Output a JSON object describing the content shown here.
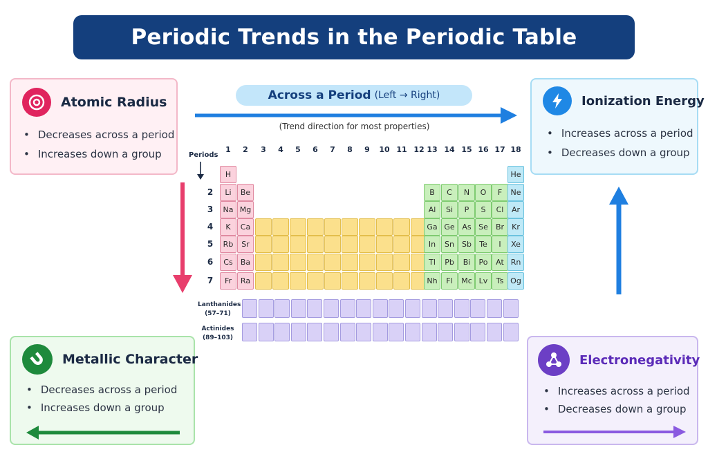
{
  "title": "Periodic Trends in the Periodic Table",
  "across": {
    "label": "Across a Period",
    "sub": "(Left → Right)",
    "note": "(Trend direction for most properties)"
  },
  "periods_label": "Periods",
  "groups": [
    "1",
    "2",
    "3",
    "4",
    "5",
    "6",
    "7",
    "8",
    "9",
    "10",
    "11",
    "12",
    "13",
    "14",
    "15",
    "16",
    "17",
    "18"
  ],
  "periods": [
    "2",
    "3",
    "4",
    "5",
    "6",
    "7"
  ],
  "elements": [
    [
      "H",
      "",
      "",
      "",
      "",
      "",
      "",
      "",
      "",
      "",
      "",
      "",
      "",
      "",
      "",
      "",
      "",
      "He"
    ],
    [
      "Li",
      "Be",
      "",
      "",
      "",
      "",
      "",
      "",
      "",
      "",
      "",
      "",
      "B",
      "C",
      "N",
      "O",
      "F",
      "Ne"
    ],
    [
      "Na",
      "Mg",
      "",
      "",
      "",
      "",
      "",
      "",
      "",
      "",
      "",
      "",
      "Al",
      "Si",
      "P",
      "S",
      "Cl",
      "Ar"
    ],
    [
      "K",
      "Ca",
      "",
      "",
      "",
      "",
      "",
      "",
      "",
      "",
      "",
      "",
      "Ga",
      "Ge",
      "As",
      "Se",
      "Br",
      "Kr"
    ],
    [
      "Rb",
      "Sr",
      "",
      "",
      "",
      "",
      "",
      "",
      "",
      "",
      "",
      "",
      "In",
      "Sn",
      "Sb",
      "Te",
      "I",
      "Xe"
    ],
    [
      "Cs",
      "Ba",
      "",
      "",
      "",
      "",
      "",
      "",
      "",
      "",
      "",
      "",
      "Tl",
      "Pb",
      "Bi",
      "Po",
      "At",
      "Rn"
    ],
    [
      "Fr",
      "Ra",
      "",
      "",
      "",
      "",
      "",
      "",
      "",
      "",
      "",
      "",
      "Nh",
      "Fl",
      "Mc",
      "Lv",
      "Ts",
      "Og"
    ]
  ],
  "f_block": {
    "lanthanides": {
      "name": "Lanthanides",
      "range": "(57–71)"
    },
    "actinides": {
      "name": "Actinides",
      "range": "(89–103)"
    }
  },
  "boxes": {
    "atomic_radius": {
      "title": "Atomic Radius",
      "icon": "target-icon",
      "color": "#e0245e",
      "items": [
        "Decreases across a period",
        "Increases down a group"
      ]
    },
    "ionization_energy": {
      "title": "Ionization Energy",
      "icon": "lightning-icon",
      "color": "#1f88e5",
      "items": [
        "Increases across a period",
        "Decreases down a group"
      ]
    },
    "metallic_character": {
      "title": "Metallic Character",
      "icon": "magnet-icon",
      "color": "#1e8a3c",
      "items": [
        "Decreases across a period",
        "Increases down a group"
      ]
    },
    "electronegativity": {
      "title": "Electronegativity",
      "icon": "molecule-icon",
      "color": "#6c3fc5",
      "items": [
        "Increases across a period",
        "Decreases down a group"
      ]
    }
  },
  "colors": {
    "title_bg": "#143f7d",
    "s_block": "#fbd2dd",
    "d_block": "#fbe08c",
    "p_block": "#c9efbc",
    "noble": "#bfe9f7",
    "f_block": "#d9d1f7"
  }
}
